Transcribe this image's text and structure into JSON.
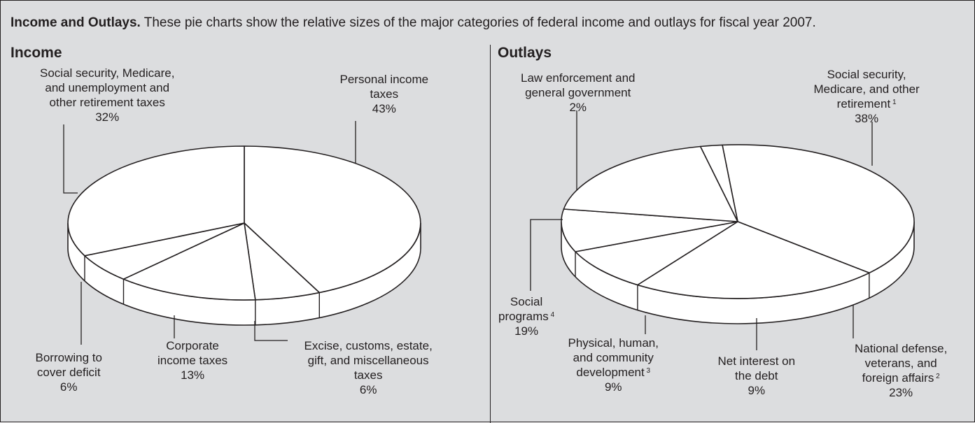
{
  "caption": {
    "lead": "Income and Outlays.",
    "text": " These pie charts show the relative sizes of the major categories of federal income and outlays for fiscal year 2007."
  },
  "colors": {
    "background": "#dcdddf",
    "slice_fill": "#ffffff",
    "stroke": "#231f20"
  },
  "chart_data": [
    {
      "type": "pie",
      "title": "Income",
      "slices": [
        {
          "label_lines": [
            "Personal income",
            "taxes"
          ],
          "value": 43
        },
        {
          "label_lines": [
            "Excise, customs, estate,",
            "gift, and miscellaneous",
            "taxes"
          ],
          "value": 6
        },
        {
          "label_lines": [
            "Corporate",
            "income taxes"
          ],
          "value": 13
        },
        {
          "label_lines": [
            "Borrowing to",
            "cover deficit"
          ],
          "value": 6
        },
        {
          "label_lines": [
            "Social security, Medicare,",
            "and unemployment and",
            "other retirement taxes"
          ],
          "value": 32
        }
      ]
    },
    {
      "type": "pie",
      "title": "Outlays",
      "slices": [
        {
          "label_lines": [
            "Social security,",
            "Medicare, and other",
            "retirement"
          ],
          "footnote": "1",
          "value": 38
        },
        {
          "label_lines": [
            "National defense,",
            "veterans, and",
            "foreign affairs"
          ],
          "footnote": "2",
          "value": 23
        },
        {
          "label_lines": [
            "Net interest on",
            "the debt"
          ],
          "value": 9
        },
        {
          "label_lines": [
            "Physical, human,",
            "and community",
            "development"
          ],
          "footnote": "3",
          "value": 9
        },
        {
          "label_lines": [
            "Social",
            "programs"
          ],
          "footnote": "4",
          "value": 19
        },
        {
          "label_lines": [
            "Law enforcement and",
            "general government"
          ],
          "value": 2
        }
      ]
    }
  ]
}
